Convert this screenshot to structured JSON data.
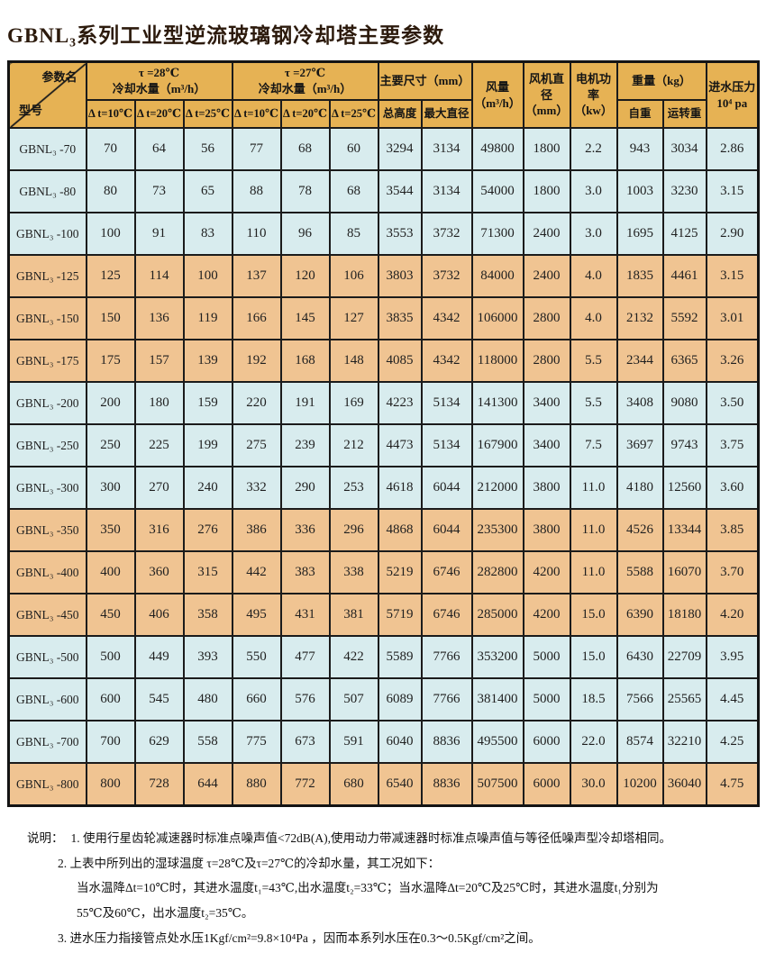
{
  "title": "GBNL₃系列工业型逆流玻璃钢冷却塔主要参数",
  "colors": {
    "header_gold": "#E6B254",
    "row_blue": "#D8ECEE",
    "row_orange": "#F0C492",
    "grid_line": "#1b1b1b"
  },
  "table": {
    "corner": {
      "top_right": "参数名",
      "bottom_left": "型号"
    },
    "group_headers": {
      "tau28": "τ =28℃\n冷却水量（m³/h）",
      "tau27": "τ =27℃\n冷却水量（m³/h）",
      "dims": "主要尺寸（mm）",
      "airflow": "风量\n（m³/h）",
      "fan_diameter": "风机直\n径\n（mm）",
      "motor_power": "电机功\n率（kw）",
      "weight": "重量（kg）",
      "inlet_pressure": "进水压力\n10⁴ pa"
    },
    "sub_headers": [
      "Δ t=10℃",
      "Δ t=20℃",
      "Δ t=25℃",
      "Δ t=10℃",
      "Δ t=20℃",
      "Δ t=25℃",
      "总高度",
      "最大直径",
      "自重",
      "运转重"
    ],
    "rows": [
      {
        "model": "GBNL₃ -70",
        "tone": "blue",
        "values": [
          70,
          64,
          56,
          77,
          68,
          60,
          3294,
          3134,
          49800,
          1800,
          "2.2",
          943,
          3034,
          "2.86"
        ]
      },
      {
        "model": "GBNL₃ -80",
        "tone": "blue",
        "values": [
          80,
          73,
          65,
          88,
          78,
          68,
          3544,
          3134,
          54000,
          1800,
          "3.0",
          1003,
          3230,
          "3.15"
        ]
      },
      {
        "model": "GBNL₃ -100",
        "tone": "blue",
        "values": [
          100,
          91,
          83,
          110,
          96,
          85,
          3553,
          3732,
          71300,
          2400,
          "3.0",
          1695,
          4125,
          "2.90"
        ]
      },
      {
        "model": "GBNL₃ -125",
        "tone": "orange",
        "values": [
          125,
          114,
          100,
          137,
          120,
          106,
          3803,
          3732,
          84000,
          2400,
          "4.0",
          1835,
          4461,
          "3.15"
        ]
      },
      {
        "model": "GBNL₃ -150",
        "tone": "orange",
        "values": [
          150,
          136,
          119,
          166,
          145,
          127,
          3835,
          4342,
          106000,
          2800,
          "4.0",
          2132,
          5592,
          "3.01"
        ]
      },
      {
        "model": "GBNL₃ -175",
        "tone": "orange",
        "values": [
          175,
          157,
          139,
          192,
          168,
          148,
          4085,
          4342,
          118000,
          2800,
          "5.5",
          2344,
          6365,
          "3.26"
        ]
      },
      {
        "model": "GBNL₃ -200",
        "tone": "blue",
        "values": [
          200,
          180,
          159,
          220,
          191,
          169,
          4223,
          5134,
          141300,
          3400,
          "5.5",
          3408,
          9080,
          "3.50"
        ]
      },
      {
        "model": "GBNL₃ -250",
        "tone": "blue",
        "values": [
          250,
          225,
          199,
          275,
          239,
          212,
          4473,
          5134,
          167900,
          3400,
          "7.5",
          3697,
          9743,
          "3.75"
        ]
      },
      {
        "model": "GBNL₃ -300",
        "tone": "blue",
        "values": [
          300,
          270,
          240,
          332,
          290,
          253,
          4618,
          6044,
          212000,
          3800,
          "11.0",
          4180,
          12560,
          "3.60"
        ]
      },
      {
        "model": "GBNL₃ -350",
        "tone": "orange",
        "values": [
          350,
          316,
          276,
          386,
          336,
          296,
          4868,
          6044,
          235300,
          3800,
          "11.0",
          4526,
          13344,
          "3.85"
        ]
      },
      {
        "model": "GBNL₃ -400",
        "tone": "orange",
        "values": [
          400,
          360,
          315,
          442,
          383,
          338,
          5219,
          6746,
          282800,
          4200,
          "11.0",
          5588,
          16070,
          "3.70"
        ]
      },
      {
        "model": "GBNL₃ -450",
        "tone": "orange",
        "values": [
          450,
          406,
          358,
          495,
          431,
          381,
          5719,
          6746,
          285000,
          4200,
          "15.0",
          6390,
          18180,
          "4.20"
        ]
      },
      {
        "model": "GBNL₃ -500",
        "tone": "blue",
        "values": [
          500,
          449,
          393,
          550,
          477,
          422,
          5589,
          7766,
          353200,
          5000,
          "15.0",
          6430,
          22709,
          "3.95"
        ]
      },
      {
        "model": "GBNL₃ -600",
        "tone": "blue",
        "values": [
          600,
          545,
          480,
          660,
          576,
          507,
          6089,
          7766,
          381400,
          5000,
          "18.5",
          7566,
          25565,
          "4.45"
        ]
      },
      {
        "model": "GBNL₃ -700",
        "tone": "blue",
        "values": [
          700,
          629,
          558,
          775,
          673,
          591,
          6040,
          8836,
          495500,
          6000,
          "22.0",
          8574,
          32210,
          "4.25"
        ]
      },
      {
        "model": "GBNL₃ -800",
        "tone": "orange",
        "values": [
          800,
          728,
          644,
          880,
          772,
          680,
          6540,
          8836,
          507500,
          6000,
          "30.0",
          10200,
          36040,
          "4.75"
        ]
      }
    ]
  },
  "notes": {
    "label": "说明：",
    "line1": "1. 使用行星齿轮减速器时标准点噪声值<72dB(A),使用动力带减速器时标准点噪声值与等径低噪声型冷却塔相同。",
    "line2": "2. 上表中所列出的湿球温度 τ=28℃及τ=27℃的冷却水量，其工况如下：",
    "line3": "当水温降Δt=10℃时，其进水温度t₁=43℃,出水温度t₂=33℃；当水温降Δt=20℃及25℃时，其进水温度t₁分别为",
    "line4": "55℃及60℃，出水温度t₂=35℃。",
    "line5": "3. 进水压力指接管点处水压1Kgf/cm²=9.8×10⁴Pa ，因而本系列水压在0.3～0.5Kgf/cm²之间。"
  }
}
